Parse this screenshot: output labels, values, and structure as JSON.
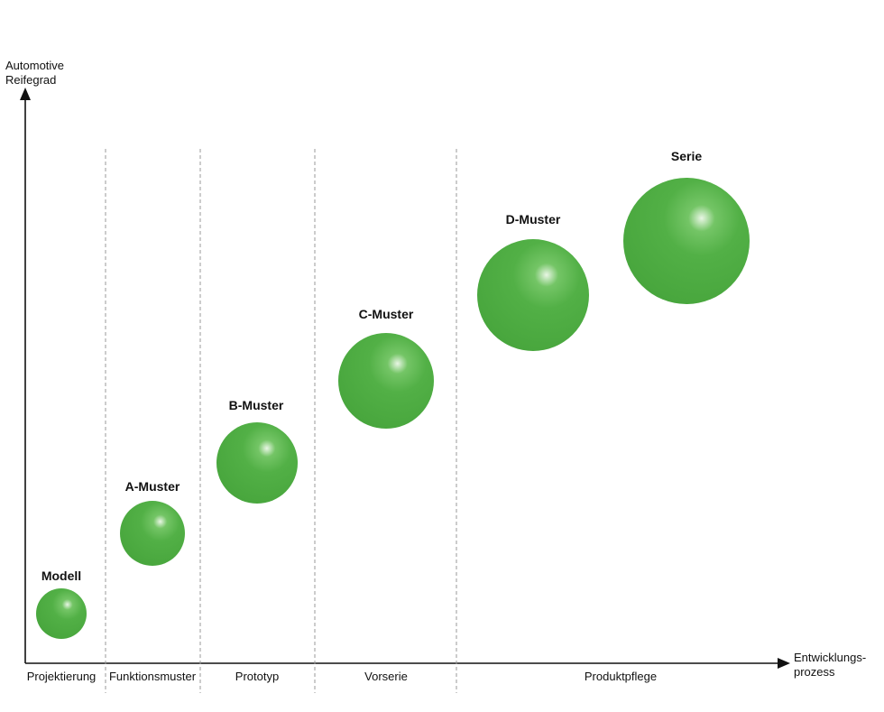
{
  "y_axis_label": [
    "Automotive",
    "Reifegrad"
  ],
  "x_axis_label": [
    "Entwicklungs-",
    "prozess"
  ],
  "colors": {
    "bubble": "#52b046",
    "bubble_dark": "#3f9a36",
    "axis": "#111111",
    "divider": "#9a9a9a"
  },
  "phases": [
    "Projektierung",
    "Funktionsmuster",
    "Prototyp",
    "Vorserie",
    "Produktpflege"
  ],
  "stages": [
    {
      "label": "Modell",
      "maturity": 1,
      "size": 1.0
    },
    {
      "label": "A-Muster",
      "maturity": 2,
      "size": 1.3
    },
    {
      "label": "B-Muster",
      "maturity": 3,
      "size": 1.6
    },
    {
      "label": "C-Muster",
      "maturity": 4,
      "size": 1.9
    },
    {
      "label": "D-Muster",
      "maturity": 5,
      "size": 2.2
    },
    {
      "label": "Serie",
      "maturity": 6,
      "size": 2.5
    }
  ]
}
